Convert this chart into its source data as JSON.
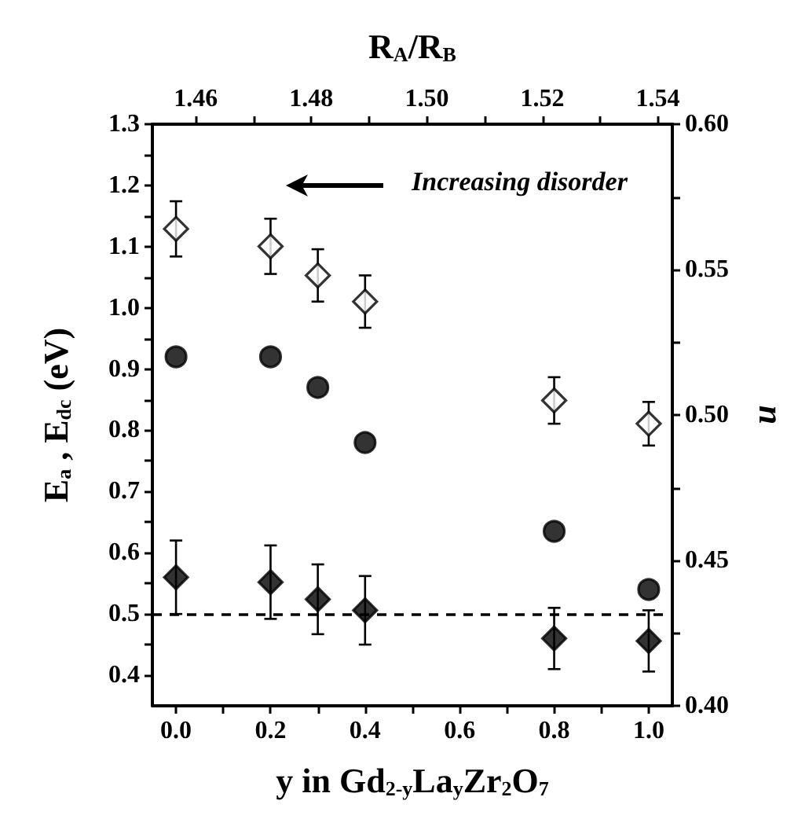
{
  "chart_data": {
    "type": "scatter",
    "xlabel": "y in Gd$_{2-y}$La$_{y}$Zr$_{2}$O$_{7}$",
    "ylabel": "E$_{a}$ , E$_{dc}$ (eV)",
    "y2label": "n",
    "x2label": "R$_{A}$/R$_{B}$",
    "annotations": [
      "Increasing disorder"
    ],
    "x": [
      0.0,
      0.2,
      0.3,
      0.4,
      0.8,
      1.0
    ],
    "series": [
      {
        "color": "#000000",
        "marker": "circle",
        "values": [
          0.92,
          0.92,
          0.87,
          0.78,
          0.635,
          0.54
        ]
      },
      {
        "color": "#000000",
        "marker": "diamond",
        "values": [
          0.56,
          0.552,
          0.524,
          0.506,
          0.46,
          0.456
        ],
        "errors": [
          0.06,
          0.06,
          0.057,
          0.056,
          0.05,
          0.05
        ]
      },
      {
        "color": "#ffffff",
        "marker": "diamond",
        "axis": "y2",
        "values": [
          0.564,
          0.558,
          0.548,
          0.539,
          0.505,
          0.497
        ],
        "errors": [
          0.0095,
          0.0095,
          0.009,
          0.009,
          0.008,
          0.0075
        ]
      }
    ],
    "xlim": [
      -0.05,
      1.05
    ],
    "xticks": [
      {
        "value": 0.0,
        "label": "0.0"
      },
      {
        "value": 0.1,
        "label": null
      },
      0.2,
      {
        "value": 0.3,
        "label": null
      },
      0.4,
      {
        "value": 0.5,
        "label": null
      },
      0.6,
      {
        "value": 0.7,
        "label": null
      },
      0.8,
      {
        "value": 0.9,
        "label": null
      },
      {
        "value": 1.0,
        "label": "1.0"
      }
    ],
    "ylim": [
      0.35,
      1.3
    ],
    "yticks": [
      0.4,
      {
        "value": 0.45,
        "label": null
      },
      0.5,
      {
        "value": 0.55,
        "label": null
      },
      0.6,
      {
        "value": 0.65,
        "label": null
      },
      0.7,
      {
        "value": 0.75,
        "label": null
      },
      0.8,
      {
        "value": 0.85,
        "label": null
      },
      0.9,
      {
        "value": 0.95,
        "label": null
      },
      {
        "value": 1.0,
        "label": "1.0"
      },
      {
        "value": 1.05,
        "label": null
      },
      1.1,
      {
        "value": 1.15,
        "label": null
      },
      1.2,
      {
        "value": 1.25,
        "label": null
      },
      1.3
    ],
    "y2lim": [
      0.4,
      0.6
    ],
    "y2ticks": [
      {
        "value": 0.4,
        "label": "0.40"
      },
      {
        "value": 0.425,
        "label": null
      },
      0.45,
      {
        "value": 0.475,
        "label": null
      },
      {
        "value": 0.5,
        "label": "0.50"
      },
      {
        "value": 0.525,
        "label": null
      },
      0.55,
      {
        "value": 0.575,
        "label": null
      },
      {
        "value": 0.6,
        "label": "0.60"
      }
    ],
    "x2lim": [
      1.4525,
      1.5425
    ],
    "x2ticks": [
      1.46,
      {
        "value": 1.47,
        "label": null
      },
      1.48,
      {
        "value": 1.49,
        "label": null
      },
      {
        "value": 1.5,
        "label": "1.50"
      },
      {
        "value": 1.51,
        "label": null
      },
      1.52,
      {
        "value": 1.53,
        "label": null
      },
      1.54
    ],
    "ref_lines": [
      {
        "axis": "y",
        "value": 0.5,
        "color": "#000000",
        "line_style": "dashed"
      }
    ]
  }
}
